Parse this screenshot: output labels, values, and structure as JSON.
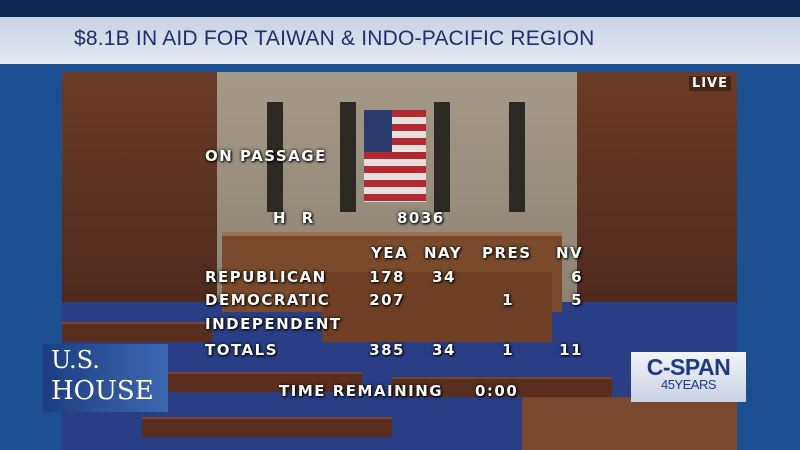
{
  "banner": {
    "title": "$8.1B IN AID FOR TAIWAN & INDO-PACIFIC REGION"
  },
  "video": {
    "status": "LIVE"
  },
  "scoreboard": {
    "heading": "ON PASSAGE",
    "bill_prefix": "H R",
    "bill_number": "8036",
    "columns": [
      "YEA",
      "NAY",
      "PRES",
      "NV"
    ],
    "rows": [
      {
        "party": "REPUBLICAN",
        "yea": "178",
        "nay": "34",
        "pres": "",
        "nv": "6"
      },
      {
        "party": "DEMOCRATIC",
        "yea": "207",
        "nay": "",
        "pres": "1",
        "nv": "5"
      },
      {
        "party": "INDEPENDENT",
        "yea": "",
        "nay": "",
        "pres": "",
        "nv": ""
      },
      {
        "party": "TOTALS",
        "yea": "385",
        "nay": "34",
        "pres": "1",
        "nv": "11"
      }
    ],
    "time_label": "TIME REMAINING",
    "time_value": "0:00"
  },
  "logos": {
    "house_line1": "U.S.",
    "house_line2": "HOUSE",
    "cspan_name": "C-SPAN",
    "cspan_years": "45YEARS"
  },
  "colors": {
    "banner_text": "#1d2f6e",
    "background": "#1b4f8f",
    "cspan_blue": "#1d3a8a"
  }
}
